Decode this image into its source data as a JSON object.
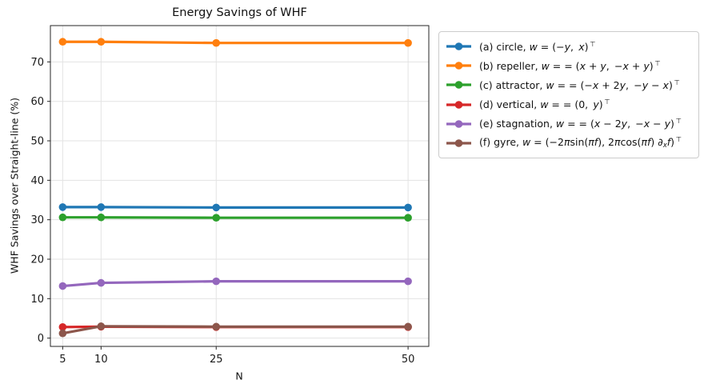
{
  "figure": {
    "background": "#ffffff"
  },
  "chart_data": {
    "type": "line",
    "title": "Energy Savings of WHF",
    "xlabel": "N",
    "ylabel": "WHF Savings over Straight-line (%)",
    "x": [
      5,
      10,
      25,
      50
    ],
    "xticks": [
      "5",
      "10",
      "25",
      "50"
    ],
    "xtick_values": [
      5,
      10,
      25,
      50
    ],
    "yticks": [
      "0",
      "10",
      "20",
      "30",
      "40",
      "50",
      "60",
      "70"
    ],
    "ytick_values": [
      0,
      10,
      20,
      30,
      40,
      50,
      60,
      70
    ],
    "xlim": [
      3.4,
      52.7
    ],
    "ylim": [
      -2.1,
      79.2
    ],
    "grid": true,
    "grid_color": "#e3e3e3",
    "spine_color": "#262626",
    "tick_label_color": "#1a1a1a",
    "legend_position": "outside-right",
    "marker": "o",
    "series": [
      {
        "name": "(a) circle",
        "color": "#1f77b4",
        "values": [
          33.2,
          33.2,
          33.1,
          33.1
        ],
        "label": "(a) circle, w = (−y, x) ⊤",
        "label_segments": [
          [
            "(a) circle, ",
            "r"
          ],
          [
            "w",
            "i"
          ],
          [
            " = (−",
            "r"
          ],
          [
            "y",
            "i"
          ],
          [
            ", ",
            "r"
          ],
          [
            "x",
            "i"
          ],
          [
            ")",
            "r"
          ],
          [
            " ⊤",
            "s"
          ]
        ]
      },
      {
        "name": "(b) repeller",
        "color": "#ff7f0e",
        "values": [
          75.1,
          75.1,
          74.8,
          74.8
        ],
        "label": "(b) repeller, w = = (x + y, −x + y) ⊤",
        "label_segments": [
          [
            "(b) repeller, ",
            "r"
          ],
          [
            "w",
            "i"
          ],
          [
            " = = (",
            "r"
          ],
          [
            "x",
            "i"
          ],
          [
            " + ",
            "r"
          ],
          [
            "y",
            "i"
          ],
          [
            ", −",
            "r"
          ],
          [
            "x",
            "i"
          ],
          [
            " + ",
            "r"
          ],
          [
            "y",
            "i"
          ],
          [
            ")",
            "r"
          ],
          [
            " ⊤",
            "s"
          ]
        ]
      },
      {
        "name": "(c) attractor",
        "color": "#2ca02c",
        "values": [
          30.6,
          30.6,
          30.5,
          30.5
        ],
        "label": "(c) attractor, w = = (−x + 2y, −y − x) ⊤",
        "label_segments": [
          [
            "(c) attractor, ",
            "r"
          ],
          [
            "w",
            "i"
          ],
          [
            " = = (−",
            "r"
          ],
          [
            "x",
            "i"
          ],
          [
            " + 2",
            "r"
          ],
          [
            "y",
            "i"
          ],
          [
            ", −",
            "r"
          ],
          [
            "y",
            "i"
          ],
          [
            " − ",
            "r"
          ],
          [
            "x",
            "i"
          ],
          [
            ")",
            "r"
          ],
          [
            " ⊤",
            "s"
          ]
        ]
      },
      {
        "name": "(d) vertical",
        "color": "#d62728",
        "values": [
          2.8,
          2.9,
          2.8,
          2.8
        ],
        "label": "(d) vertical, w = = (0, y) ⊤",
        "label_segments": [
          [
            "(d) vertical, ",
            "r"
          ],
          [
            "w",
            "i"
          ],
          [
            " = = (0, ",
            "r"
          ],
          [
            "y",
            "i"
          ],
          [
            ")",
            "r"
          ],
          [
            " ⊤",
            "s"
          ]
        ]
      },
      {
        "name": "(e) stagnation",
        "color": "#9467bd",
        "values": [
          13.2,
          14.0,
          14.4,
          14.4
        ],
        "label": "(e) stagnation, w = = (x − 2y, −x − y) ⊤",
        "label_segments": [
          [
            "(e) stagnation, ",
            "r"
          ],
          [
            "w",
            "i"
          ],
          [
            " = = (",
            "r"
          ],
          [
            "x",
            "i"
          ],
          [
            " − 2",
            "r"
          ],
          [
            "y",
            "i"
          ],
          [
            ", −",
            "r"
          ],
          [
            "x",
            "i"
          ],
          [
            " − ",
            "r"
          ],
          [
            "y",
            "i"
          ],
          [
            ")",
            "r"
          ],
          [
            " ⊤",
            "s"
          ]
        ]
      },
      {
        "name": "(f) gyre",
        "color": "#8c564b",
        "values": [
          1.2,
          3.0,
          2.9,
          2.9
        ],
        "label": "(f) gyre, w = (−2πsin(πf), 2πcos(πf) ∂ₓf) ⊤",
        "label_segments": [
          [
            "(f) gyre, ",
            "r"
          ],
          [
            "w",
            "i"
          ],
          [
            " = (−2",
            "r"
          ],
          [
            "π",
            "i"
          ],
          [
            "sin(",
            "r"
          ],
          [
            "πf",
            "i"
          ],
          [
            "), 2",
            "r"
          ],
          [
            "π",
            "i"
          ],
          [
            "cos(",
            "r"
          ],
          [
            "πf",
            "i"
          ],
          [
            ") ",
            "r"
          ],
          [
            "∂",
            "i"
          ],
          [
            "x",
            "b"
          ],
          [
            "f",
            "i"
          ],
          [
            ")",
            "r"
          ],
          [
            " ⊤",
            "s"
          ]
        ]
      }
    ]
  }
}
